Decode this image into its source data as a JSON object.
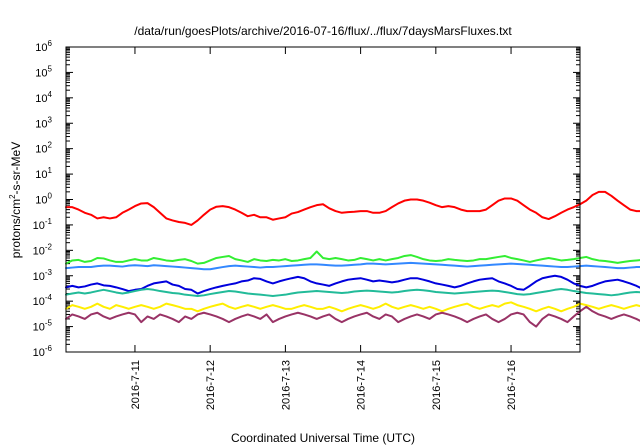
{
  "chart_data": {
    "type": "line",
    "title": "/data/run/goesPlots/archive/2016-07-16/flux/../flux/7daysMarsFluxes.txt",
    "xlabel": "Coordinated Universal Time (UTC)",
    "ylabel": {
      "base": "protons/cm",
      "sup": "2",
      "rest": "-s-sr-MeV"
    },
    "y_scale": "log",
    "ylim": [
      1e-06,
      1000000.0
    ],
    "y_ticks": [
      {
        "base": "10",
        "exp": "-6",
        "value": 1e-06
      },
      {
        "base": "10",
        "exp": "-5",
        "value": 1e-05
      },
      {
        "base": "10",
        "exp": "-4",
        "value": 0.0001
      },
      {
        "base": "10",
        "exp": "-3",
        "value": 0.001
      },
      {
        "base": "10",
        "exp": "-2",
        "value": 0.01
      },
      {
        "base": "10",
        "exp": "-1",
        "value": 0.1
      },
      {
        "base": "10",
        "exp": "0",
        "value": 1.0
      },
      {
        "base": "10",
        "exp": "1",
        "value": 10.0
      },
      {
        "base": "10",
        "exp": "2",
        "value": 100.0
      },
      {
        "base": "10",
        "exp": "3",
        "value": 1000.0
      },
      {
        "base": "10",
        "exp": "4",
        "value": 10000.0
      },
      {
        "base": "10",
        "exp": "5",
        "value": 100000.0
      },
      {
        "base": "10",
        "exp": "6",
        "value": 1000000.0
      }
    ],
    "x_range": [
      "2016-07-10T02:00",
      "2016-07-16T22:00"
    ],
    "x_ticks": [
      {
        "label": "2016-7-11",
        "time": "2016-07-11T00:00"
      },
      {
        "label": "2016-7-12",
        "time": "2016-07-12T00:00"
      },
      {
        "label": "2016-7-13",
        "time": "2016-07-13T00:00"
      },
      {
        "label": "2016-7-14",
        "time": "2016-07-14T00:00"
      },
      {
        "label": "2016-7-15",
        "time": "2016-07-15T00:00"
      },
      {
        "label": "2016-7-16",
        "time": "2016-07-16T00:00"
      }
    ],
    "grid": false,
    "legend": "none",
    "series": [
      {
        "color": "#ff0000",
        "time_step_hours": 2,
        "values": [
          0.5,
          0.5,
          0.4,
          0.3,
          0.25,
          0.18,
          0.2,
          0.18,
          0.2,
          0.3,
          0.4,
          0.55,
          0.7,
          0.72,
          0.5,
          0.3,
          0.18,
          0.15,
          0.13,
          0.12,
          0.1,
          0.15,
          0.25,
          0.4,
          0.52,
          0.55,
          0.5,
          0.4,
          0.3,
          0.22,
          0.25,
          0.2,
          0.2,
          0.16,
          0.18,
          0.2,
          0.28,
          0.32,
          0.4,
          0.5,
          0.6,
          0.65,
          0.45,
          0.35,
          0.3,
          0.32,
          0.33,
          0.35,
          0.35,
          0.3,
          0.3,
          0.35,
          0.5,
          0.7,
          0.9,
          1.0,
          1.0,
          0.9,
          0.75,
          0.6,
          0.5,
          0.55,
          0.5,
          0.4,
          0.35,
          0.35,
          0.35,
          0.4,
          0.6,
          0.9,
          1.1,
          1.1,
          0.9,
          0.6,
          0.4,
          0.3,
          0.2,
          0.17,
          0.22,
          0.3,
          0.4,
          0.5,
          0.65,
          0.9,
          1.5,
          2.0,
          2.0,
          1.4,
          0.9,
          0.6,
          0.4,
          0.35,
          0.35,
          0.45,
          0.5,
          0.45,
          0.5,
          0.6,
          0.75,
          0.9,
          1.0,
          1.1,
          1.0
        ]
      },
      {
        "color": "#33ee33",
        "time_step_hours": 2,
        "values": [
          0.003,
          0.004,
          0.0042,
          0.0035,
          0.0038,
          0.005,
          0.0048,
          0.004,
          0.0035,
          0.0035,
          0.004,
          0.0045,
          0.004,
          0.004,
          0.005,
          0.0045,
          0.004,
          0.0038,
          0.0042,
          0.0045,
          0.0038,
          0.003,
          0.0032,
          0.004,
          0.005,
          0.0055,
          0.006,
          0.0045,
          0.004,
          0.0035,
          0.0045,
          0.004,
          0.0038,
          0.0042,
          0.004,
          0.0045,
          0.0038,
          0.004,
          0.0045,
          0.005,
          0.009,
          0.005,
          0.0045,
          0.005,
          0.0045,
          0.004,
          0.0042,
          0.005,
          0.0045,
          0.004,
          0.0045,
          0.004,
          0.0045,
          0.005,
          0.006,
          0.0065,
          0.0055,
          0.0045,
          0.004,
          0.0038,
          0.004,
          0.0045,
          0.0042,
          0.004,
          0.0038,
          0.004,
          0.0045,
          0.0045,
          0.005,
          0.0055,
          0.006,
          0.005,
          0.0045,
          0.004,
          0.0035,
          0.004,
          0.0045,
          0.005,
          0.0045,
          0.004,
          0.0042,
          0.0045,
          0.005,
          0.0055,
          0.0045,
          0.004,
          0.0038,
          0.0035,
          0.0032,
          0.0035,
          0.0038,
          0.004,
          0.0042,
          0.004,
          0.0038,
          0.0042,
          0.0045,
          0.004,
          0.0035,
          0.0038,
          0.0045,
          0.005,
          0.004
        ]
      },
      {
        "color": "#3388ff",
        "time_step_hours": 2,
        "values": [
          0.002,
          0.0021,
          0.0022,
          0.0022,
          0.0022,
          0.0024,
          0.0025,
          0.0025,
          0.0024,
          0.0023,
          0.0025,
          0.0026,
          0.0025,
          0.0024,
          0.0026,
          0.0025,
          0.0024,
          0.0023,
          0.0022,
          0.0021,
          0.002,
          0.0019,
          0.0018,
          0.0018,
          0.002,
          0.0022,
          0.0024,
          0.0025,
          0.0024,
          0.0023,
          0.0022,
          0.0021,
          0.0022,
          0.0022,
          0.0023,
          0.0024,
          0.0025,
          0.0026,
          0.0027,
          0.0028,
          0.0028,
          0.0027,
          0.0026,
          0.0025,
          0.0025,
          0.0026,
          0.0027,
          0.0028,
          0.003,
          0.003,
          0.0029,
          0.0028,
          0.0029,
          0.003,
          0.0031,
          0.0032,
          0.0031,
          0.003,
          0.0029,
          0.0028,
          0.0027,
          0.0026,
          0.0025,
          0.0024,
          0.0023,
          0.0024,
          0.0025,
          0.0026,
          0.0027,
          0.0028,
          0.0029,
          0.003,
          0.0029,
          0.0028,
          0.0027,
          0.0026,
          0.0025,
          0.0024,
          0.0023,
          0.0022,
          0.0022,
          0.0023,
          0.0024,
          0.0025,
          0.0024,
          0.0023,
          0.0022,
          0.0021,
          0.002,
          0.002,
          0.0021,
          0.0022,
          0.0022,
          0.0021,
          0.002,
          0.0021,
          0.0022,
          0.0023,
          0.0024,
          0.0023,
          0.0022,
          0.0021,
          0.002
        ]
      },
      {
        "color": "#0000dd",
        "time_step_hours": 2,
        "values": [
          0.00035,
          0.0004,
          0.00035,
          0.00038,
          0.00045,
          0.0005,
          0.00042,
          0.0004,
          0.00035,
          0.0003,
          0.00025,
          0.00028,
          0.0003,
          0.0004,
          0.0005,
          0.00055,
          0.0006,
          0.00045,
          0.0004,
          0.0003,
          0.00028,
          0.0002,
          0.00025,
          0.0003,
          0.00035,
          0.0004,
          0.00045,
          0.0005,
          0.0006,
          0.00065,
          0.0008,
          0.00075,
          0.0006,
          0.0005,
          0.0006,
          0.0007,
          0.0008,
          0.0009,
          0.0008,
          0.0006,
          0.0005,
          0.00045,
          0.0004,
          0.0005,
          0.0006,
          0.0007,
          0.00075,
          0.0008,
          0.0007,
          0.0006,
          0.00065,
          0.0006,
          0.00055,
          0.0006,
          0.0007,
          0.0008,
          0.0008,
          0.0007,
          0.0006,
          0.0005,
          0.00045,
          0.0004,
          0.00035,
          0.0004,
          0.0005,
          0.0006,
          0.0007,
          0.00075,
          0.0008,
          0.0006,
          0.0005,
          0.0004,
          0.0003,
          0.00028,
          0.0004,
          0.0006,
          0.0008,
          0.0009,
          0.001,
          0.0009,
          0.0007,
          0.0005,
          0.0004,
          0.00035,
          0.0004,
          0.0005,
          0.0006,
          0.00065,
          0.0007,
          0.0006,
          0.0005,
          0.0004,
          0.0003,
          0.00025,
          0.0003,
          0.00045,
          0.0006,
          0.0007,
          0.0006,
          0.0005,
          0.00055,
          0.0007,
          0.0008
        ]
      },
      {
        "color": "#22bb99",
        "time_step_hours": 2,
        "values": [
          0.00018,
          0.0002,
          0.00022,
          0.0002,
          0.00022,
          0.00025,
          0.00028,
          0.00025,
          0.00022,
          0.0002,
          0.00022,
          0.00025,
          0.00028,
          0.0003,
          0.00028,
          0.00025,
          0.00023,
          0.00021,
          0.0002,
          0.00018,
          0.00017,
          0.00016,
          0.00017,
          0.00019,
          0.00021,
          0.00023,
          0.00025,
          0.00024,
          0.00022,
          0.0002,
          0.00019,
          0.00018,
          0.00017,
          0.00016,
          0.00017,
          0.00018,
          0.0002,
          0.00022,
          0.00023,
          0.00024,
          0.00025,
          0.00024,
          0.00023,
          0.00022,
          0.00021,
          0.00022,
          0.00024,
          0.00025,
          0.00026,
          0.00025,
          0.00024,
          0.00023,
          0.00022,
          0.00023,
          0.00025,
          0.00027,
          0.00028,
          0.00027,
          0.00025,
          0.00023,
          0.00022,
          0.00021,
          0.0002,
          0.00021,
          0.00022,
          0.00023,
          0.00024,
          0.00025,
          0.00026,
          0.00025,
          0.00023,
          0.00021,
          0.00019,
          0.00018,
          0.00019,
          0.00021,
          0.00023,
          0.00025,
          0.00028,
          0.0003,
          0.00028,
          0.00025,
          0.00023,
          0.00021,
          0.0002,
          0.00019,
          0.00018,
          0.00017,
          0.00018,
          0.0002,
          0.00022,
          0.00023,
          0.00022,
          0.0002,
          0.00019,
          0.00018,
          0.00019,
          0.00021,
          0.00023,
          0.00024,
          0.00023,
          0.00022,
          0.00021
        ]
      },
      {
        "color": "#ffee00",
        "time_step_hours": 2,
        "values": [
          5e-05,
          7e-05,
          6e-05,
          5e-05,
          6e-05,
          8e-05,
          6e-05,
          5e-05,
          7e-05,
          6e-05,
          5e-05,
          6e-05,
          7e-05,
          6e-05,
          5e-05,
          6e-05,
          8e-05,
          7e-05,
          6e-05,
          5e-05,
          5e-05,
          4e-05,
          5e-05,
          6e-05,
          7e-05,
          8e-05,
          6e-05,
          5e-05,
          6e-05,
          7e-05,
          6e-05,
          5e-05,
          6e-05,
          7e-05,
          6e-05,
          5e-05,
          5e-05,
          6e-05,
          7e-05,
          6e-05,
          5e-05,
          5e-05,
          6e-05,
          5e-05,
          4e-05,
          5e-05,
          6e-05,
          7e-05,
          6e-05,
          5e-05,
          6e-05,
          8e-05,
          6e-05,
          5e-05,
          6e-05,
          7e-05,
          6e-05,
          5e-05,
          6e-05,
          5e-05,
          4e-05,
          5e-05,
          6e-05,
          7e-05,
          8e-05,
          6e-05,
          5e-05,
          6e-05,
          7e-05,
          6e-05,
          8e-05,
          9e-05,
          7e-05,
          6e-05,
          5e-05,
          4e-05,
          5e-05,
          6e-05,
          5e-05,
          4e-05,
          5e-05,
          6e-05,
          8e-05,
          7e-05,
          6e-05,
          5e-05,
          6e-05,
          7e-05,
          6e-05,
          5e-05,
          6e-05,
          7e-05,
          6e-05,
          5e-05,
          6e-05,
          5e-05,
          4e-05,
          5e-05,
          6e-05,
          7e-05,
          6e-05,
          5e-05,
          6e-05
        ]
      },
      {
        "color": "#993366",
        "time_step_hours": 2,
        "values": [
          2e-05,
          3e-05,
          2.5e-05,
          2e-05,
          3e-05,
          3.5e-05,
          2.5e-05,
          2e-05,
          2.5e-05,
          3e-05,
          3.5e-05,
          3e-05,
          1.5e-05,
          2.5e-05,
          2e-05,
          3e-05,
          2.5e-05,
          2e-05,
          1.5e-05,
          2.5e-05,
          2e-05,
          3e-05,
          3.5e-05,
          3e-05,
          2.5e-05,
          2e-05,
          1.5e-05,
          2e-05,
          2.5e-05,
          3e-05,
          2.5e-05,
          2e-05,
          3e-05,
          1.5e-05,
          2e-05,
          2.5e-05,
          3e-05,
          3.5e-05,
          3e-05,
          2.5e-05,
          2e-05,
          2.5e-05,
          3e-05,
          2e-05,
          1.5e-05,
          2e-05,
          2.5e-05,
          3e-05,
          3.5e-05,
          2.5e-05,
          2e-05,
          3e-05,
          2.5e-05,
          1.5e-05,
          2e-05,
          2.5e-05,
          3e-05,
          2.5e-05,
          2e-05,
          3e-05,
          3.5e-05,
          3e-05,
          2.5e-05,
          2e-05,
          1.5e-05,
          2e-05,
          2.5e-05,
          3e-05,
          2e-05,
          1.5e-05,
          2e-05,
          3e-05,
          3.5e-05,
          3e-05,
          1.5e-05,
          1e-05,
          2e-05,
          3e-05,
          2.5e-05,
          2e-05,
          1.5e-05,
          2.5e-05,
          4e-05,
          6e-05,
          4e-05,
          3e-05,
          2.5e-05,
          2e-05,
          2.5e-05,
          3e-05,
          2.5e-05,
          2e-05,
          1.5e-05,
          2.5e-05,
          3e-05,
          3.5e-05,
          3e-05,
          2e-05,
          2.5e-05,
          3e-05,
          2e-05,
          1.5e-05,
          2.5e-05
        ]
      }
    ]
  }
}
